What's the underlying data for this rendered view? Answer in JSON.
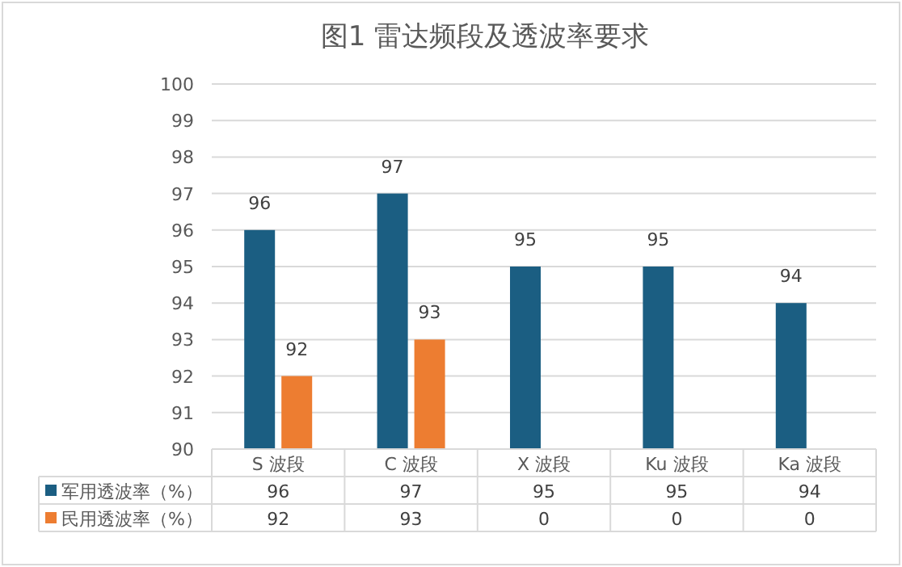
{
  "chart_data": {
    "type": "bar",
    "title": "图1 雷达频段及透波率要求",
    "categories": [
      "S 波段",
      "C 波段",
      "X 波段",
      "Ku 波段",
      "Ka 波段"
    ],
    "series": [
      {
        "name": "军用透波率（%）",
        "color": "#1b5e82",
        "values": [
          96,
          97,
          95,
          95,
          94
        ],
        "value_labels": [
          "96",
          "97",
          "95",
          "95",
          "94"
        ]
      },
      {
        "name": "民用透波率（%）",
        "color": "#ed7d31",
        "values": [
          92,
          93,
          null,
          null,
          null
        ],
        "value_labels": [
          "92",
          "93",
          "0",
          "0",
          "0"
        ]
      }
    ],
    "ylim": [
      90,
      100
    ],
    "yticks": [
      90,
      91,
      92,
      93,
      94,
      95,
      96,
      97,
      98,
      99,
      100
    ],
    "grid": "y",
    "legend": "bottom"
  }
}
